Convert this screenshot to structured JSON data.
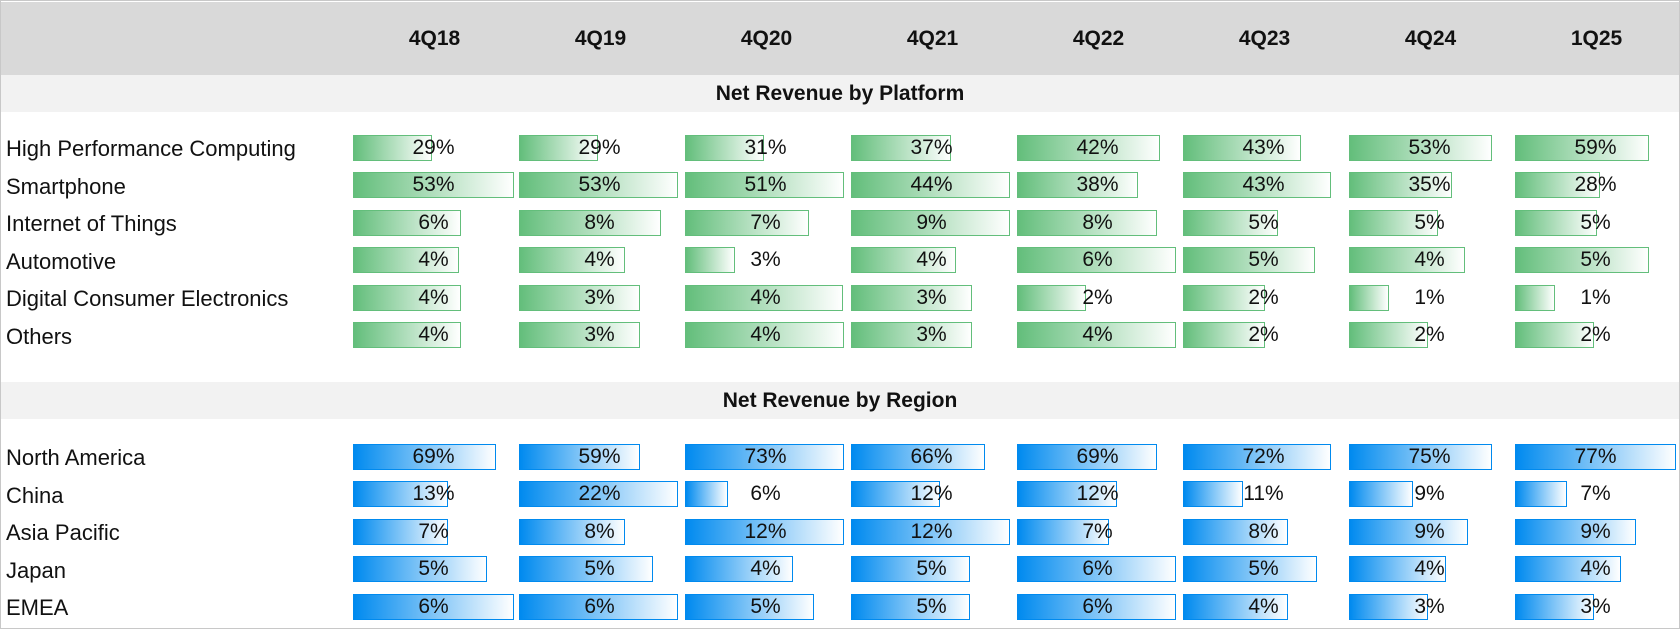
{
  "columns": [
    "4Q18",
    "4Q19",
    "4Q20",
    "4Q21",
    "4Q22",
    "4Q23",
    "4Q24",
    "1Q25"
  ],
  "colors": {
    "platform_bar": "#63be7b",
    "region_bar": "#008aef",
    "header_bg": "#d9d9d9",
    "band_bg": "#f2f2f2"
  },
  "sections": [
    {
      "title": "Net Revenue by Platform",
      "color": "green",
      "rows": [
        {
          "label": "High Performance Computing",
          "values": [
            "29%",
            "29%",
            "31%",
            "37%",
            "42%",
            "43%",
            "53%",
            "59%"
          ],
          "fill": [
            0.49,
            0.49,
            0.49,
            0.62,
            0.89,
            0.73,
            0.89,
            0.83
          ]
        },
        {
          "label": "Smartphone",
          "values": [
            "53%",
            "53%",
            "51%",
            "44%",
            "38%",
            "43%",
            "35%",
            "28%"
          ],
          "fill": [
            1,
            0.99,
            0.99,
            0.99,
            0.75,
            0.92,
            0.64,
            0.53
          ]
        },
        {
          "label": "Internet of Things",
          "values": [
            "6%",
            "8%",
            "7%",
            "9%",
            "8%",
            "5%",
            "5%",
            "5%"
          ],
          "fill": [
            0.67,
            0.88,
            0.77,
            0.99,
            0.87,
            0.59,
            0.55,
            0.51
          ]
        },
        {
          "label": "Automotive",
          "values": [
            "4%",
            "4%",
            "3%",
            "4%",
            "6%",
            "5%",
            "4%",
            "5%"
          ],
          "fill": [
            0.66,
            0.66,
            0.31,
            0.65,
            0.99,
            0.82,
            0.72,
            0.83
          ]
        },
        {
          "label": "Digital Consumer Electronics",
          "values": [
            "4%",
            "3%",
            "4%",
            "3%",
            "2%",
            "2%",
            "1%",
            "1%"
          ],
          "fill": [
            0.67,
            0.75,
            0.98,
            0.75,
            0.43,
            0.51,
            0.25,
            0.25
          ]
        },
        {
          "label": "Others",
          "values": [
            "4%",
            "3%",
            "4%",
            "3%",
            "4%",
            "2%",
            "2%",
            "2%"
          ],
          "fill": [
            0.67,
            0.75,
            0.99,
            0.75,
            0.99,
            0.51,
            0.49,
            0.49
          ]
        }
      ]
    },
    {
      "title": "Net Revenue by Region",
      "color": "blue",
      "rows": [
        {
          "label": "North America",
          "values": [
            "69%",
            "59%",
            "73%",
            "66%",
            "69%",
            "72%",
            "75%",
            "77%"
          ],
          "fill": [
            0.89,
            0.75,
            0.99,
            0.83,
            0.87,
            0.92,
            0.89,
            1
          ]
        },
        {
          "label": "China",
          "values": [
            "13%",
            "22%",
            "6%",
            "12%",
            "12%",
            "11%",
            "9%",
            "7%"
          ],
          "fill": [
            0.59,
            0.99,
            0.27,
            0.55,
            0.62,
            0.37,
            0.4,
            0.32
          ]
        },
        {
          "label": "Asia Pacific",
          "values": [
            "7%",
            "8%",
            "12%",
            "12%",
            "7%",
            "8%",
            "9%",
            "9%"
          ],
          "fill": [
            0.59,
            0.66,
            0.99,
            0.99,
            0.57,
            0.65,
            0.74,
            0.75
          ]
        },
        {
          "label": "Japan",
          "values": [
            "5%",
            "5%",
            "4%",
            "5%",
            "6%",
            "5%",
            "4%",
            "4%"
          ],
          "fill": [
            0.83,
            0.83,
            0.67,
            0.74,
            0.99,
            0.83,
            0.6,
            0.66
          ]
        },
        {
          "label": "EMEA",
          "values": [
            "6%",
            "6%",
            "5%",
            "5%",
            "6%",
            "4%",
            "3%",
            "3%"
          ],
          "fill": [
            1,
            0.99,
            0.8,
            0.74,
            0.99,
            0.65,
            0.49,
            0.49
          ]
        }
      ]
    }
  ]
}
